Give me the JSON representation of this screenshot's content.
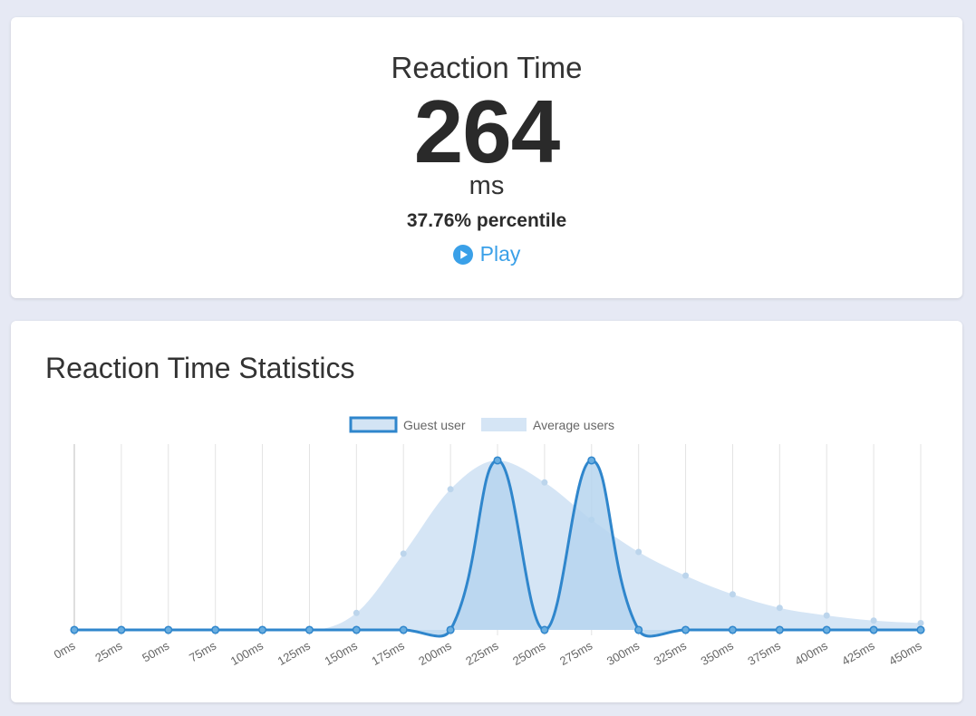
{
  "result": {
    "title": "Reaction Time",
    "value": "264",
    "unit": "ms",
    "percentile": "37.76% percentile",
    "play_label": "Play",
    "play_icon": "play-circle-icon"
  },
  "stats": {
    "title": "Reaction Time Statistics"
  },
  "colors": {
    "background": "#e6e9f4",
    "guest_line": "#2f86cc",
    "guest_fill": "#b6d5ef",
    "average_fill": "#d5e5f5",
    "play": "#3aa0e8"
  },
  "chart_data": {
    "type": "line",
    "categories": [
      "0ms",
      "25ms",
      "50ms",
      "75ms",
      "100ms",
      "125ms",
      "150ms",
      "175ms",
      "200ms",
      "225ms",
      "250ms",
      "275ms",
      "300ms",
      "325ms",
      "350ms",
      "375ms",
      "400ms",
      "425ms",
      "450ms"
    ],
    "series": [
      {
        "name": "Guest user",
        "values": [
          0,
          0,
          0,
          0,
          0,
          0,
          0,
          0,
          0,
          1,
          0,
          1,
          0,
          0,
          0,
          0,
          0,
          0,
          0
        ]
      },
      {
        "name": "Average users",
        "values": [
          0,
          0,
          0,
          0,
          0,
          0,
          0.1,
          0.45,
          0.83,
          1,
          0.87,
          0.65,
          0.46,
          0.32,
          0.21,
          0.13,
          0.085,
          0.055,
          0.04
        ]
      }
    ],
    "ylim": [
      0,
      1
    ],
    "grid": "vertical",
    "legend": "top-center"
  }
}
